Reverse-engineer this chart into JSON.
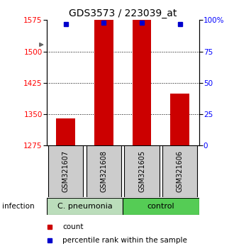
{
  "title": "GDS3573 / 223039_at",
  "samples": [
    "GSM321607",
    "GSM321608",
    "GSM321605",
    "GSM321606"
  ],
  "counts": [
    1340,
    1575,
    1575,
    1400
  ],
  "percentiles": [
    97,
    98,
    98,
    97
  ],
  "ylim_left": [
    1275,
    1575
  ],
  "ylim_right": [
    0,
    100
  ],
  "yticks_left": [
    1275,
    1350,
    1425,
    1500,
    1575
  ],
  "yticks_right": [
    0,
    25,
    50,
    75,
    100
  ],
  "ytick_labels_right": [
    "0",
    "25",
    "50",
    "75",
    "100%"
  ],
  "grid_lines": [
    1500,
    1425,
    1350
  ],
  "bar_color": "#cc0000",
  "dot_color": "#0000cc",
  "group1_label": "C. pneumonia",
  "group2_label": "control",
  "group1_color": "#bbddbb",
  "group2_color": "#55cc55",
  "infection_label": "infection",
  "legend_count": "count",
  "legend_pct": "percentile rank within the sample",
  "bar_width": 0.5,
  "title_fontsize": 10,
  "tick_fontsize": 7.5,
  "sample_fontsize": 7,
  "group_fontsize": 8
}
